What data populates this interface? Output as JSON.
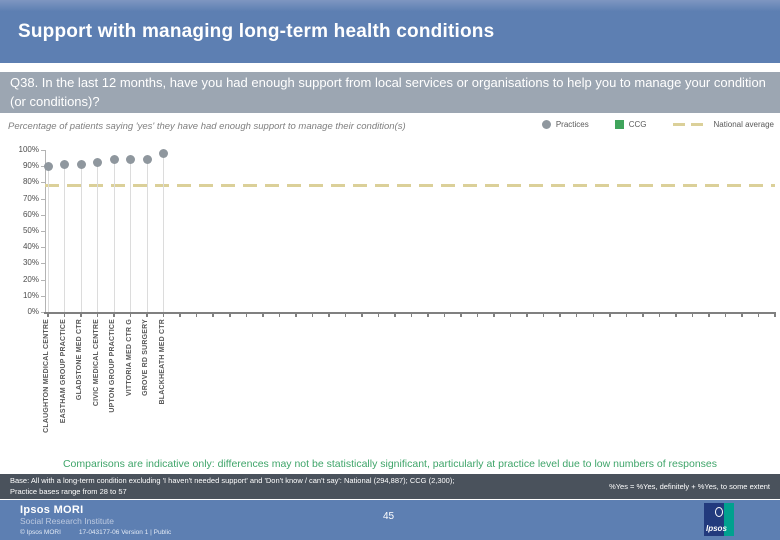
{
  "slide": {
    "title": "Support with managing long-term health conditions",
    "question": "Q38. In the last 12 months, have you had enough support from local services or organisations to help you to manage your condition (or conditions)?",
    "chart_subtitle": "Percentage of patients saying 'yes' they have had enough support to manage their condition(s)"
  },
  "legend": {
    "practices_label": "Practices",
    "ccg_label": "CCG",
    "national_label": "National average"
  },
  "chart_data": {
    "type": "scatter",
    "title": "Percentage of patients saying 'yes' they have had enough support to manage their condition(s)",
    "categories": [
      "CLAUGHTON MEDICAL CENTRE",
      "EASTHAM GROUP PRACTICE",
      "GLADSTONE MED CTR",
      "CIVIC MEDICAL CENTRE",
      "UPTON GROUP PRACTICE",
      "VITTORIA MED CTR G",
      "GROVE RD SURGERY",
      "BLACKHEATH MED CTR"
    ],
    "series": [
      {
        "name": "Practices",
        "marker": "circle",
        "color": "#8f979e",
        "values": [
          90,
          91,
          91,
          92,
          94,
          94,
          94,
          98
        ]
      }
    ],
    "national_average": 78,
    "ylim": [
      0,
      100
    ],
    "y_tick_step": 10,
    "y_tick_labels": [
      "0%",
      "10%",
      "20%",
      "30%",
      "40%",
      "50%",
      "60%",
      "70%",
      "80%",
      "90%",
      "100%"
    ],
    "total_x_positions": 45,
    "grid": false,
    "legend_position": "top-right"
  },
  "footnote": {
    "comparisons": "Comparisons are indicative only: differences may not be statistically significant, particularly at practice level due to low numbers of responses",
    "base_line1": "Base: All with a long-term condition excluding 'I haven't needed support' and 'Don't know / can't say': National (294,887); CCG (2,300);",
    "base_line2": "Practice bases range from 28 to 57",
    "yes_note": "%Yes = %Yes, definitely + %Yes, to some extent"
  },
  "footer": {
    "brand": "Ipsos MORI",
    "sub_brand": "Social Research Institute",
    "copyright": "© Ipsos MORI",
    "version": "17-043177-06 Version 1 | Public",
    "page_number": "45",
    "logo_text": "Ipsos"
  },
  "colors": {
    "header_blue": "#5d7fb2",
    "question_gray": "#9ca6b2",
    "practice_dot": "#8f979e",
    "ccg_green": "#3fa45b",
    "national_tan": "#dbd099",
    "comparisons_green": "#3fa56a",
    "base_bar": "#4a525c",
    "logo_navy": "#223a7d",
    "logo_teal": "#00a18f"
  }
}
